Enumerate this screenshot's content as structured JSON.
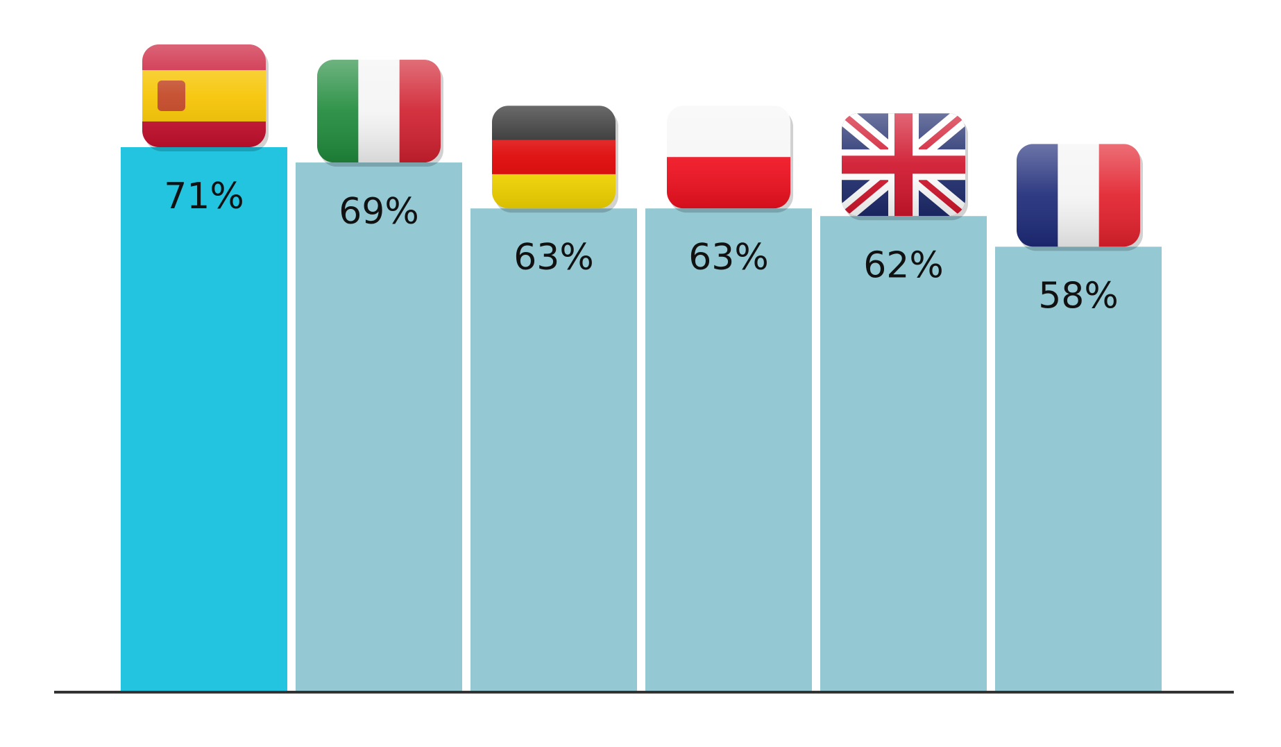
{
  "chart_data": {
    "type": "bar",
    "values": [
      71,
      69,
      63,
      63,
      62,
      58
    ],
    "value_labels": [
      "71%",
      "69%",
      "63%",
      "63%",
      "62%",
      "58%"
    ],
    "colors": [
      "#22c4e0",
      "#94c9d3",
      "#94c9d3",
      "#94c9d3",
      "#94c9d3",
      "#94c9d3"
    ]
  }
}
